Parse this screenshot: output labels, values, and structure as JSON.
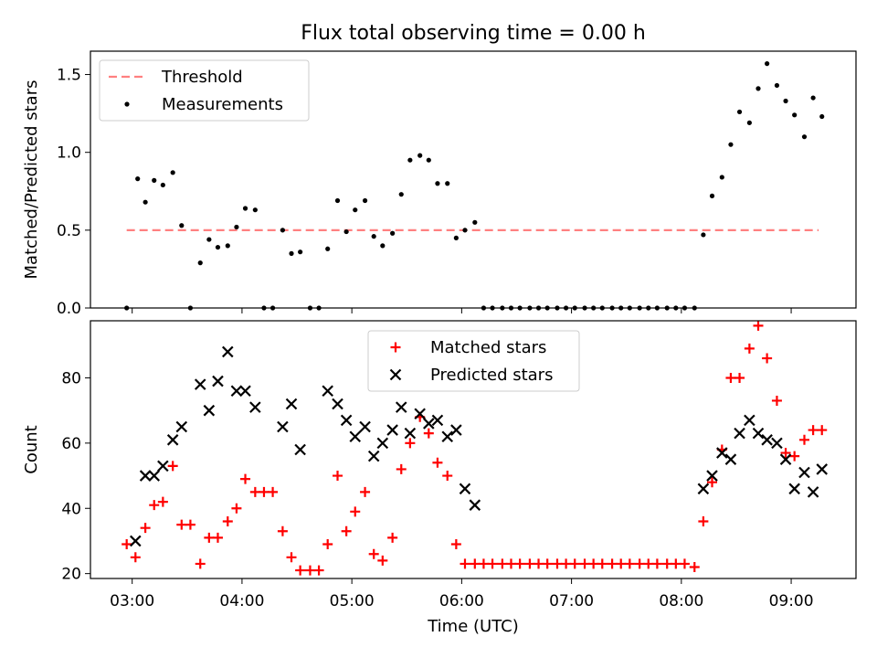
{
  "figure": {
    "title": "Flux total observing time = 0.00 h",
    "xlabel": "Time (UTC)",
    "x_ticks": [
      "03:00",
      "04:00",
      "05:00",
      "06:00",
      "07:00",
      "08:00",
      "09:00"
    ],
    "x_tick_hours": [
      3,
      4,
      5,
      6,
      7,
      8,
      9
    ],
    "x_range_hours": [
      2.62,
      9.59
    ]
  },
  "chart_data": [
    {
      "type": "scatter",
      "title": "Flux total observing time = 0.00 h",
      "ylabel": "Matched/Predicted stars",
      "ylim": [
        0,
        1.65
      ],
      "y_ticks": [
        0.0,
        0.5,
        1.0,
        1.5
      ],
      "y_tick_labels": [
        "0.0",
        "0.5",
        "1.0",
        "1.5"
      ],
      "legend": {
        "location": "upper left",
        "entries": [
          "Threshold",
          "Measurements"
        ]
      },
      "series": [
        {
          "name": "Threshold",
          "kind": "dashed-line",
          "color": "#ff8080",
          "x_hours": [
            2.95,
            9.25
          ],
          "y": [
            0.5,
            0.5
          ]
        },
        {
          "name": "Measurements",
          "kind": "points",
          "color": "#000000",
          "x_hours": [
            2.95,
            3.05,
            3.12,
            3.2,
            3.28,
            3.37,
            3.45,
            3.53,
            3.62,
            3.7,
            3.78,
            3.87,
            3.95,
            4.03,
            4.12,
            4.2,
            4.28,
            4.37,
            4.45,
            4.53,
            4.62,
            4.7,
            4.78,
            4.87,
            4.95,
            5.03,
            5.12,
            5.2,
            5.28,
            5.37,
            5.45,
            5.53,
            5.62,
            5.7,
            5.78,
            5.87,
            5.95,
            6.03,
            6.12,
            6.2,
            6.28,
            6.37,
            6.45,
            6.53,
            6.62,
            6.7,
            6.78,
            6.87,
            6.95,
            7.03,
            7.12,
            7.2,
            7.28,
            7.37,
            7.45,
            7.53,
            7.62,
            7.7,
            7.78,
            7.87,
            7.95,
            8.03,
            8.12,
            8.2,
            8.28,
            8.37,
            8.45,
            8.53,
            8.62,
            8.7,
            8.78,
            8.87,
            8.95,
            9.03,
            9.12,
            9.2,
            9.28
          ],
          "y": [
            0.0,
            0.83,
            0.68,
            0.82,
            0.79,
            0.87,
            0.53,
            0.0,
            0.29,
            0.44,
            0.39,
            0.4,
            0.52,
            0.64,
            0.63,
            0.0,
            0.0,
            0.5,
            0.35,
            0.36,
            0.0,
            0.0,
            0.38,
            0.69,
            0.49,
            0.63,
            0.69,
            0.46,
            0.4,
            0.48,
            0.73,
            0.95,
            0.98,
            0.95,
            0.8,
            0.8,
            0.45,
            0.5,
            0.55,
            0.0,
            0.0,
            0.0,
            0.0,
            0.0,
            0.0,
            0.0,
            0.0,
            0.0,
            0.0,
            0.0,
            0.0,
            0.0,
            0.0,
            0.0,
            0.0,
            0.0,
            0.0,
            0.0,
            0.0,
            0.0,
            0.0,
            0.0,
            0.0,
            0.47,
            0.72,
            0.84,
            1.05,
            1.26,
            1.19,
            1.41,
            1.57,
            1.43,
            1.33,
            1.24,
            1.1,
            1.35,
            1.23
          ]
        }
      ]
    },
    {
      "type": "scatter",
      "ylabel": "Count",
      "ylim": [
        18.5,
        97.5
      ],
      "y_ticks": [
        20,
        40,
        60,
        80
      ],
      "y_tick_labels": [
        "20",
        "40",
        "60",
        "80"
      ],
      "legend": {
        "location": "upper center",
        "entries": [
          "Matched stars",
          "Predicted stars"
        ]
      },
      "series": [
        {
          "name": "Matched stars",
          "kind": "plus",
          "color": "#ff0000",
          "x_hours": [
            2.95,
            3.03,
            3.12,
            3.2,
            3.28,
            3.37,
            3.45,
            3.53,
            3.62,
            3.7,
            3.78,
            3.87,
            3.95,
            4.03,
            4.12,
            4.2,
            4.28,
            4.37,
            4.45,
            4.53,
            4.62,
            4.7,
            4.78,
            4.87,
            4.95,
            5.03,
            5.12,
            5.2,
            5.28,
            5.37,
            5.45,
            5.53,
            5.62,
            5.7,
            5.78,
            5.87,
            5.95,
            6.03,
            6.12,
            6.2,
            6.28,
            6.37,
            6.45,
            6.53,
            6.62,
            6.7,
            6.78,
            6.87,
            6.95,
            7.03,
            7.12,
            7.2,
            7.28,
            7.37,
            7.45,
            7.53,
            7.62,
            7.7,
            7.78,
            7.87,
            7.95,
            8.03,
            8.12,
            8.2,
            8.28,
            8.37,
            8.45,
            8.53,
            8.62,
            8.7,
            8.78,
            8.87,
            8.95,
            9.03,
            9.12,
            9.2,
            9.28
          ],
          "y": [
            29,
            25,
            34,
            41,
            42,
            53,
            35,
            35,
            23,
            31,
            31,
            36,
            40,
            49,
            45,
            45,
            45,
            33,
            25,
            21,
            21,
            21,
            29,
            50,
            33,
            39,
            45,
            26,
            24,
            31,
            52,
            60,
            68,
            63,
            54,
            50,
            29,
            23,
            23,
            23,
            23,
            23,
            23,
            23,
            23,
            23,
            23,
            23,
            23,
            23,
            23,
            23,
            23,
            23,
            23,
            23,
            23,
            23,
            23,
            23,
            23,
            23,
            22,
            36,
            48,
            58,
            80,
            80,
            89,
            96,
            86,
            73,
            57,
            56,
            61,
            64,
            64
          ]
        },
        {
          "name": "Predicted stars",
          "kind": "x",
          "color": "#000000",
          "x_hours": [
            3.03,
            3.12,
            3.2,
            3.28,
            3.37,
            3.45,
            3.62,
            3.7,
            3.78,
            3.87,
            3.95,
            4.03,
            4.12,
            4.37,
            4.45,
            4.53,
            4.78,
            4.87,
            4.95,
            5.03,
            5.12,
            5.2,
            5.28,
            5.37,
            5.45,
            5.53,
            5.62,
            5.7,
            5.78,
            5.87,
            5.95,
            6.03,
            6.12,
            8.2,
            8.28,
            8.37,
            8.45,
            8.53,
            8.62,
            8.7,
            8.78,
            8.87,
            8.95,
            9.03,
            9.12,
            9.2,
            9.28
          ],
          "y": [
            30,
            50,
            50,
            53,
            61,
            65,
            78,
            70,
            79,
            88,
            76,
            76,
            71,
            65,
            72,
            58,
            76,
            72,
            67,
            62,
            65,
            56,
            60,
            64,
            71,
            63,
            69,
            66,
            67,
            62,
            64,
            46,
            41,
            46,
            50,
            57,
            55,
            63,
            67,
            63,
            61,
            60,
            55,
            46,
            51,
            45,
            52
          ]
        }
      ]
    }
  ]
}
